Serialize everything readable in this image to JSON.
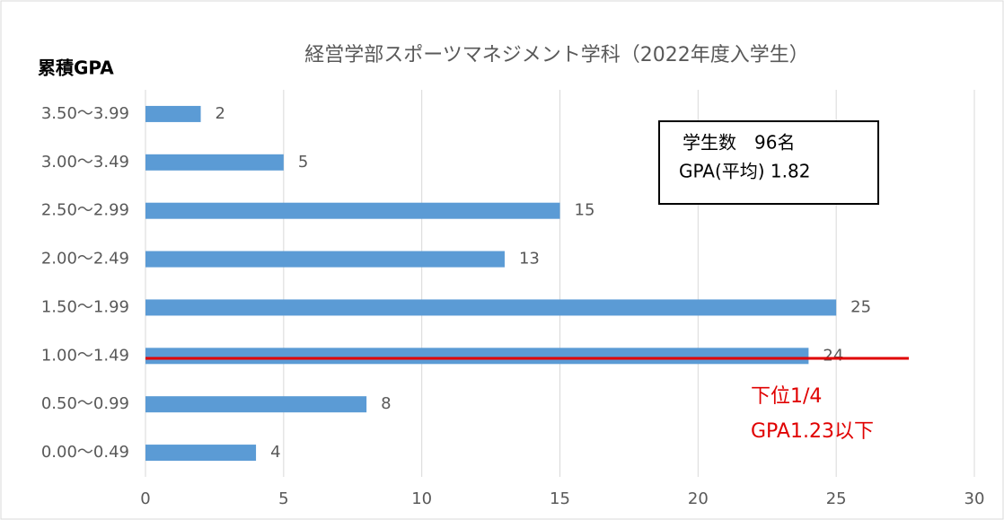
{
  "chart_data": {
    "type": "bar",
    "orientation": "horizontal",
    "title": "経営学部スポーツマネジメント学科（2022年度入学生）",
    "y_label": "累積GPA",
    "categories": [
      "3.50～3.99",
      "3.00～3.49",
      "2.50～2.99",
      "2.00～2.49",
      "1.50～1.99",
      "1.00～1.49",
      "0.50～0.99",
      "0.00～0.49"
    ],
    "values": [
      2,
      5,
      15,
      13,
      25,
      24,
      8,
      4
    ],
    "color": "#5b9bd5",
    "xlim": [
      0,
      30
    ],
    "xticks": [
      0,
      5,
      10,
      15,
      20,
      25,
      30
    ],
    "grid": true,
    "annotations": [
      "学生数　96名",
      "GPA(平均) 1.82",
      "下位1/4",
      "GPA1.23以下"
    ]
  }
}
